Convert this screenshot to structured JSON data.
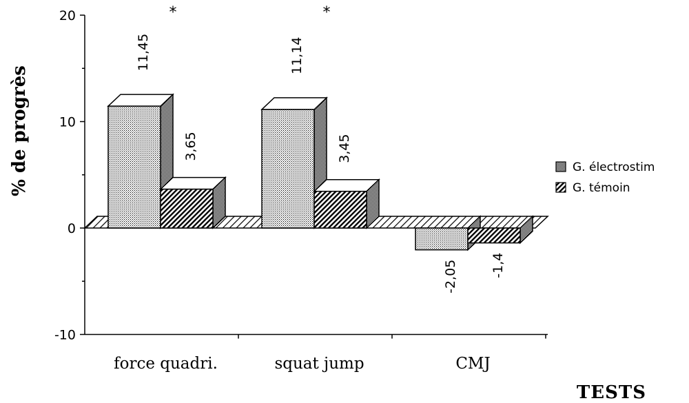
{
  "chart_data": {
    "type": "bar",
    "style": "3d-clustered",
    "categories": [
      "force quadri.",
      "squat jump",
      "CMJ"
    ],
    "series": [
      {
        "name": "G. électrostim",
        "pattern": "dotted",
        "values": [
          11.45,
          11.14,
          -2.05
        ],
        "labels": [
          "11,45",
          "11,14",
          "-2,05"
        ]
      },
      {
        "name": "G. témoin",
        "pattern": "hatched",
        "values": [
          3.65,
          3.45,
          -1.4
        ],
        "labels": [
          "3,65",
          "3,45",
          "-1,4"
        ]
      }
    ],
    "significance_markers": [
      "*",
      "*",
      ""
    ],
    "ylabel": "% de progrès",
    "xlabel": "TESTS",
    "ylim": [
      -10,
      20
    ],
    "yticks": [
      -10,
      0,
      10,
      20
    ],
    "grid": false,
    "legend_position": "right"
  }
}
